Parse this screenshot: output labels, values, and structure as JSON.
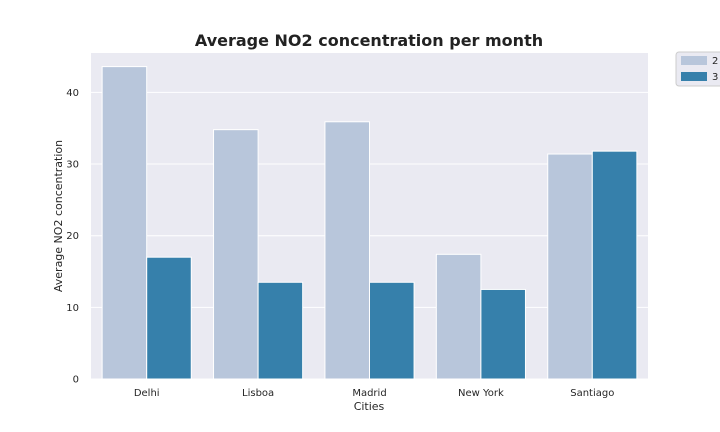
{
  "chart_data": {
    "type": "bar",
    "title": "Average NO2 concentration per month",
    "xlabel": "Cities",
    "ylabel": "Average NO2 concentration",
    "categories": [
      "Delhi",
      "Lisboa",
      "Madrid",
      "New York",
      "Santiago"
    ],
    "series": [
      {
        "name": "2",
        "values": [
          43.6,
          34.8,
          35.9,
          17.4,
          31.4
        ],
        "color": "#b8c6db"
      },
      {
        "name": "3",
        "values": [
          17.0,
          13.5,
          13.5,
          12.5,
          31.8
        ],
        "color": "#3680ab"
      }
    ],
    "ylim": [
      0,
      45.5
    ],
    "yticks": [
      0,
      10,
      20,
      30,
      40
    ],
    "grid": true,
    "legend_placement": "outside-top-right",
    "plot_background": "#eaeaf2"
  }
}
